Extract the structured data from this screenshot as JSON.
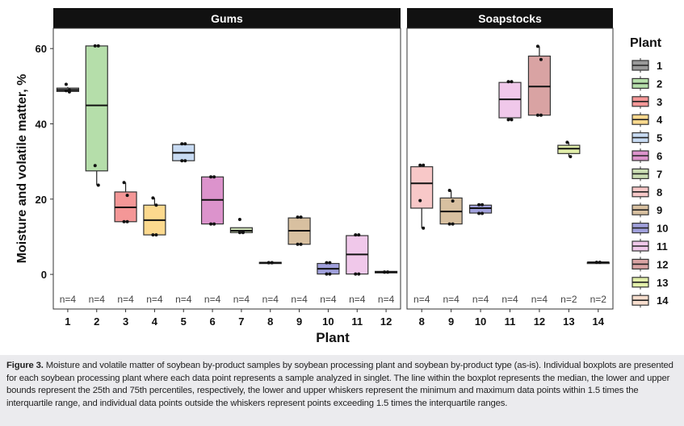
{
  "chart_data": {
    "type": "boxplot",
    "ylabel": "Moisture and volatile matter, %",
    "xlabel": "Plant",
    "ylim": [
      -9.2,
      65.4
    ],
    "yticks": [
      0,
      20,
      40,
      60
    ],
    "grid": false,
    "legend": {
      "title": "Plant",
      "placement": "right",
      "entries": [
        {
          "label": "1",
          "color": "#9a9a9a"
        },
        {
          "label": "2",
          "color": "#b5deaa"
        },
        {
          "label": "3",
          "color": "#f49797"
        },
        {
          "label": "4",
          "color": "#fcd98e"
        },
        {
          "label": "5",
          "color": "#c8dbf3"
        },
        {
          "label": "6",
          "color": "#dc93cc"
        },
        {
          "label": "7",
          "color": "#cadcb3"
        },
        {
          "label": "8",
          "color": "#f8c8c8"
        },
        {
          "label": "9",
          "color": "#d8c0a0"
        },
        {
          "label": "10",
          "color": "#a0a0dc"
        },
        {
          "label": "11",
          "color": "#f0c8ea"
        },
        {
          "label": "12",
          "color": "#d9a3a3"
        },
        {
          "label": "13",
          "color": "#e2efaa"
        },
        {
          "label": "14",
          "color": "#f8dece"
        }
      ]
    },
    "panels": [
      {
        "title": "Gums",
        "boxes": [
          {
            "plant": "1",
            "n": "n=4",
            "lower": 48.5,
            "q1": 48.6,
            "median": 49.0,
            "q3": 49.5,
            "upper": 49.8,
            "points": [
              50.5,
              49.0,
              48.8,
              48.5
            ]
          },
          {
            "plant": "2",
            "n": "n=4",
            "lower": 23.7,
            "q1": 27.5,
            "median": 44.9,
            "q3": 60.7,
            "upper": 60.7,
            "points": [
              60.7,
              60.7,
              28.9,
              23.7
            ]
          },
          {
            "plant": "3",
            "n": "n=4",
            "lower": 14.0,
            "q1": 14.0,
            "median": 17.8,
            "q3": 21.9,
            "upper": 24.4,
            "points": [
              24.4,
              21.0,
              14.0,
              14.0
            ]
          },
          {
            "plant": "4",
            "n": "n=4",
            "lower": 10.5,
            "q1": 10.5,
            "median": 14.4,
            "q3": 18.4,
            "upper": 20.3,
            "points": [
              20.3,
              18.4,
              10.5,
              10.5
            ]
          },
          {
            "plant": "5",
            "n": "n=4",
            "lower": 30.2,
            "q1": 30.2,
            "median": 32.3,
            "q3": 34.5,
            "upper": 34.7,
            "points": [
              34.7,
              34.7,
              30.2,
              30.2
            ]
          },
          {
            "plant": "6",
            "n": "n=4",
            "lower": 13.4,
            "q1": 13.4,
            "median": 19.8,
            "q3": 25.9,
            "upper": 25.9,
            "points": [
              25.9,
              25.9,
              13.4,
              13.4
            ]
          },
          {
            "plant": "7",
            "n": "n=4",
            "lower": 11.1,
            "q1": 11.1,
            "median": 11.6,
            "q3": 12.4,
            "upper": 12.4,
            "points": [
              14.6,
              11.3,
              11.1,
              11.1
            ]
          },
          {
            "plant": "8",
            "n": "n=4",
            "lower": 3.1,
            "q1": 3.1,
            "median": 3.1,
            "q3": 3.2,
            "upper": 3.2,
            "points": [
              3.1,
              3.1,
              3.1,
              3.1
            ]
          },
          {
            "plant": "9",
            "n": "n=4",
            "lower": 8.0,
            "q1": 8.0,
            "median": 11.6,
            "q3": 15.0,
            "upper": 15.2,
            "points": [
              15.2,
              15.2,
              8.0,
              8.0
            ]
          },
          {
            "plant": "10",
            "n": "n=4",
            "lower": 0.1,
            "q1": 0.1,
            "median": 1.5,
            "q3": 2.9,
            "upper": 3.1,
            "points": [
              3.1,
              3.1,
              0.1,
              0.1
            ]
          },
          {
            "plant": "11",
            "n": "n=4",
            "lower": 0.1,
            "q1": 0.1,
            "median": 5.3,
            "q3": 10.3,
            "upper": 10.5,
            "points": [
              10.5,
              10.5,
              0.1,
              0.1
            ]
          },
          {
            "plant": "12",
            "n": "n=4",
            "lower": 0.4,
            "q1": 0.4,
            "median": 0.6,
            "q3": 0.8,
            "upper": 0.8,
            "points": [
              0.6,
              0.6,
              0.6,
              0.6
            ]
          }
        ]
      },
      {
        "title": "Soapstocks",
        "boxes": [
          {
            "plant": "8",
            "n": "n=4",
            "lower": 12.3,
            "q1": 17.6,
            "median": 24.2,
            "q3": 28.6,
            "upper": 29.0,
            "points": [
              29.0,
              29.0,
              19.6,
              12.3
            ]
          },
          {
            "plant": "9",
            "n": "n=4",
            "lower": 13.4,
            "q1": 13.4,
            "median": 16.7,
            "q3": 20.3,
            "upper": 22.3,
            "points": [
              22.3,
              19.5,
              13.4,
              13.4
            ]
          },
          {
            "plant": "10",
            "n": "n=4",
            "lower": 16.2,
            "q1": 16.3,
            "median": 17.6,
            "q3": 18.4,
            "upper": 18.5,
            "points": [
              18.5,
              18.5,
              16.2,
              16.2
            ]
          },
          {
            "plant": "11",
            "n": "n=4",
            "lower": 41.1,
            "q1": 41.6,
            "median": 46.5,
            "q3": 51.0,
            "upper": 51.2,
            "points": [
              51.2,
              51.2,
              41.1,
              41.1
            ]
          },
          {
            "plant": "12",
            "n": "n=4",
            "lower": 42.3,
            "q1": 42.3,
            "median": 49.9,
            "q3": 58.0,
            "upper": 60.6,
            "points": [
              60.6,
              57.1,
              42.3,
              42.3
            ]
          },
          {
            "plant": "13",
            "n": "n=2",
            "lower": 31.3,
            "q1": 32.1,
            "median": 33.4,
            "q3": 34.3,
            "upper": 35.1,
            "points": [
              35.1,
              31.3
            ]
          },
          {
            "plant": "14",
            "n": "n=2",
            "lower": 3.2,
            "q1": 3.2,
            "median": 3.2,
            "q3": 3.2,
            "upper": 3.2,
            "points": [
              3.2,
              3.2
            ]
          }
        ]
      }
    ]
  },
  "caption": {
    "label": "Figure 3.",
    "text": " Moisture and volatile matter of soybean by-product samples by soybean processing plant and soybean by-product type (as-is). Individual boxplots are presented for each soybean processing plant where each data point represents a sample analyzed in singlet. The line within the boxplot represents the median, the lower and upper bounds represent the 25th and 75th percentiles, respectively, the lower and upper whiskers represent the minimum and maximum data points within 1.5 times the interquartile range, and individual data points outside the whiskers represent points exceeding 1.5 times the interquartile ranges."
  }
}
